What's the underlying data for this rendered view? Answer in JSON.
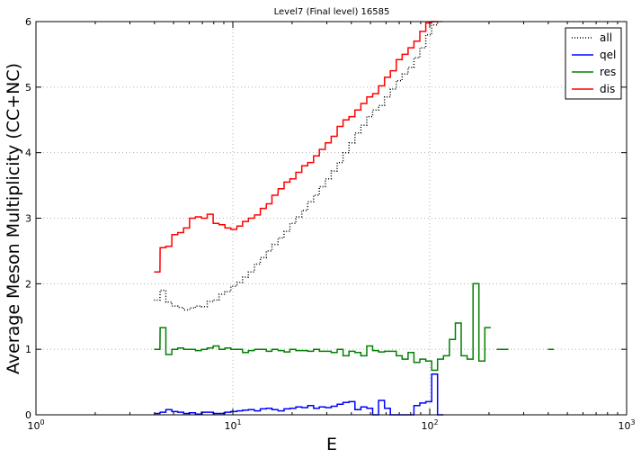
{
  "chart_data": {
    "type": "line",
    "title": "Level7 (Final level) 16585",
    "xlabel": "E",
    "ylabel": "Average Meson Multiplicity (CC+NC)",
    "xscale": "log",
    "xlim": [
      1,
      1000
    ],
    "ylim": [
      0,
      6
    ],
    "xticks": [
      {
        "value": 1,
        "base": "10",
        "exp": "0"
      },
      {
        "value": 10,
        "base": "10",
        "exp": "1"
      },
      {
        "value": 100,
        "base": "10",
        "exp": "2"
      },
      {
        "value": 1000,
        "base": "10",
        "exp": "3"
      }
    ],
    "yticks": [
      "0",
      "1",
      "2",
      "3",
      "4",
      "5",
      "6"
    ],
    "grid": true,
    "legend_position": "top-right",
    "series": [
      {
        "name": "all",
        "color": "#000000",
        "style": "dotted",
        "x": [
          3.98,
          4.27,
          4.57,
          4.9,
          5.25,
          5.62,
          6.03,
          6.46,
          6.92,
          7.41,
          7.94,
          8.51,
          9.12,
          9.77,
          10.5,
          11.2,
          12.0,
          12.9,
          13.8,
          14.8,
          15.8,
          17.0,
          18.2,
          19.5,
          20.9,
          22.4,
          24.0,
          25.7,
          27.5,
          29.5,
          31.6,
          33.9,
          36.3,
          38.9,
          41.7,
          44.7,
          47.9,
          51.3,
          55.0,
          58.9,
          63.1,
          67.6,
          72.4,
          77.6,
          83.2,
          89.1,
          95.5,
          102.3,
          109.6
        ],
        "y": [
          1.75,
          1.9,
          1.72,
          1.66,
          1.64,
          1.6,
          1.63,
          1.66,
          1.65,
          1.73,
          1.75,
          1.84,
          1.88,
          1.96,
          2.02,
          2.1,
          2.18,
          2.3,
          2.4,
          2.5,
          2.6,
          2.7,
          2.8,
          2.92,
          3.02,
          3.12,
          3.25,
          3.35,
          3.48,
          3.6,
          3.72,
          3.85,
          4.0,
          4.15,
          4.3,
          4.42,
          4.55,
          4.65,
          4.72,
          4.85,
          4.97,
          5.1,
          5.2,
          5.3,
          5.45,
          5.6,
          5.8,
          5.95,
          6.0
        ]
      },
      {
        "name": "qel",
        "color": "#0000ff",
        "style": "solid",
        "x": [
          3.98,
          4.27,
          4.57,
          4.9,
          5.25,
          5.62,
          6.03,
          6.46,
          6.92,
          7.41,
          7.94,
          8.51,
          9.12,
          9.77,
          10.5,
          11.2,
          12.0,
          12.9,
          13.8,
          14.8,
          15.8,
          17.0,
          18.2,
          19.5,
          20.9,
          22.4,
          24.0,
          25.7,
          27.5,
          29.5,
          31.6,
          33.9,
          36.3,
          38.9,
          41.7,
          44.7,
          47.9,
          51.3,
          55.0,
          58.9,
          63.1,
          67.6,
          72.4,
          77.6,
          83.2,
          89.1,
          95.5,
          102.3,
          109.6
        ],
        "y": [
          0.02,
          0.04,
          0.08,
          0.05,
          0.04,
          0.02,
          0.03,
          0.01,
          0.04,
          0.04,
          0.02,
          0.02,
          0.04,
          0.05,
          0.06,
          0.07,
          0.08,
          0.06,
          0.09,
          0.1,
          0.08,
          0.06,
          0.09,
          0.1,
          0.12,
          0.11,
          0.14,
          0.1,
          0.12,
          0.11,
          0.13,
          0.16,
          0.19,
          0.2,
          0.08,
          0.12,
          0.1,
          0.0,
          0.22,
          0.1,
          0.0,
          0.0,
          0.0,
          0.0,
          0.14,
          0.18,
          0.2,
          0.62,
          0.0
        ]
      },
      {
        "name": "res",
        "color": "#008000",
        "style": "solid",
        "x": [
          3.98,
          4.27,
          4.57,
          4.9,
          5.25,
          5.62,
          6.03,
          6.46,
          6.92,
          7.41,
          7.94,
          8.51,
          9.12,
          9.77,
          10.5,
          11.2,
          12.0,
          12.9,
          13.8,
          14.8,
          15.8,
          17.0,
          18.2,
          19.5,
          20.9,
          22.4,
          24.0,
          25.7,
          27.5,
          29.5,
          31.6,
          33.9,
          36.3,
          38.9,
          41.7,
          44.7,
          47.9,
          51.3,
          55.0,
          58.9,
          63.1,
          67.6,
          72.4,
          77.6,
          83.2,
          89.1,
          95.5,
          102.3,
          109.6,
          117.5,
          125.9,
          134.9,
          144.5,
          154.9,
          166.0,
          177.8,
          190.5,
          204.2,
          218.8,
          234.4,
          398.1
        ],
        "y": [
          1.0,
          1.33,
          0.92,
          1.0,
          1.02,
          1.0,
          1.0,
          0.98,
          1.0,
          1.02,
          1.05,
          1.0,
          1.02,
          1.0,
          1.0,
          0.95,
          0.98,
          1.0,
          1.0,
          0.97,
          1.0,
          0.98,
          0.96,
          1.0,
          0.98,
          0.98,
          0.97,
          1.0,
          0.97,
          0.97,
          0.95,
          1.0,
          0.9,
          0.97,
          0.95,
          0.9,
          1.05,
          0.98,
          0.96,
          0.97,
          0.97,
          0.9,
          0.85,
          0.95,
          0.8,
          0.85,
          0.82,
          0.68,
          0.85,
          0.9,
          1.15,
          1.4,
          0.9,
          0.85,
          2.0,
          0.82,
          1.33,
          null,
          1.0,
          1.0,
          1.0
        ]
      },
      {
        "name": "dis",
        "color": "#ff0000",
        "style": "solid",
        "x": [
          3.98,
          4.27,
          4.57,
          4.9,
          5.25,
          5.62,
          6.03,
          6.46,
          6.92,
          7.41,
          7.94,
          8.51,
          9.12,
          9.77,
          10.5,
          11.2,
          12.0,
          12.9,
          13.8,
          14.8,
          15.8,
          17.0,
          18.2,
          19.5,
          20.9,
          22.4,
          24.0,
          25.7,
          27.5,
          29.5,
          31.6,
          33.9,
          36.3,
          38.9,
          41.7,
          44.7,
          47.9,
          51.3,
          55.0,
          58.9,
          63.1,
          67.6,
          72.4,
          77.6,
          83.2,
          89.1,
          95.5,
          102.3
        ],
        "y": [
          2.18,
          2.55,
          2.57,
          2.75,
          2.78,
          2.85,
          3.0,
          3.02,
          3.0,
          3.06,
          2.92,
          2.9,
          2.85,
          2.83,
          2.88,
          2.95,
          3.0,
          3.05,
          3.15,
          3.22,
          3.35,
          3.45,
          3.55,
          3.6,
          3.7,
          3.8,
          3.85,
          3.95,
          4.05,
          4.15,
          4.25,
          4.4,
          4.5,
          4.55,
          4.65,
          4.75,
          4.85,
          4.9,
          5.02,
          5.15,
          5.25,
          5.42,
          5.5,
          5.6,
          5.7,
          5.85,
          5.98,
          6.0
        ]
      }
    ]
  }
}
